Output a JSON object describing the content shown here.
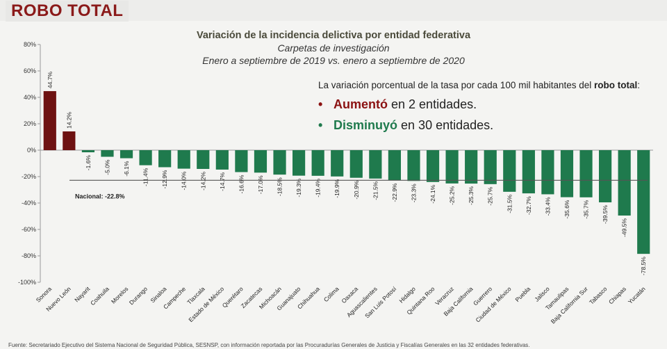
{
  "header": {
    "title": "ROBO TOTAL"
  },
  "chart_data": {
    "type": "bar",
    "title": "Variación de la incidencia delictiva por entidad federativa",
    "subtitle": "Carpetas de investigación",
    "period": "Enero a septiembre de 2019 vs. enero a septiembre de 2020",
    "ylim": [
      -100,
      80
    ],
    "yticks": [
      80,
      60,
      40,
      20,
      0,
      -20,
      -40,
      -60,
      -80,
      -100
    ],
    "ytick_suffix": "%",
    "grid": false,
    "categories": [
      "Sonora",
      "Nuevo León",
      "Nayarit",
      "Coahuila",
      "Morelos",
      "Durango",
      "Sinaloa",
      "Campeche",
      "Tlaxcala",
      "Estado de México",
      "Querétaro",
      "Zacatecas",
      "Michoacán",
      "Guanajuato",
      "Chihuahua",
      "Colima",
      "Oaxaca",
      "Aguascalientes",
      "San Luis Potosí",
      "Hidalgo",
      "Quintana Roo",
      "Veracruz",
      "Baja California",
      "Guerrero",
      "Ciudad de México",
      "Puebla",
      "Jalisco",
      "Tamaulipas",
      "Baja California Sur",
      "Tabasco",
      "Chiapas",
      "Yucatán"
    ],
    "values": [
      44.7,
      14.2,
      -1.6,
      -5.0,
      -6.1,
      -11.4,
      -12.9,
      -14.0,
      -14.2,
      -14.7,
      -16.6,
      -17.0,
      -18.5,
      -19.3,
      -19.4,
      -19.9,
      -20.9,
      -21.5,
      -22.9,
      -23.3,
      -24.1,
      -25.2,
      -25.3,
      -25.7,
      -31.5,
      -32.7,
      -33.4,
      -35.6,
      -35.7,
      -39.5,
      -49.5,
      -78.5
    ],
    "value_labels": [
      "44.7%",
      "14.2%",
      "-1.6%",
      "-5.0%",
      "-6.1%",
      "-11.4%",
      "-12.9%",
      "-14.0%",
      "-14.2%",
      "-14.7%",
      "-16.6%",
      "-17.0%",
      "-18.5%",
      "-19.3%",
      "-19.4%",
      "-19.9%",
      "-20.9%",
      "-21.5%",
      "-22.9%",
      "-23.3%",
      "-24.1%",
      "-25.2%",
      "-25.3%",
      "-25.7%",
      "-31.5%",
      "-32.7%",
      "-33.4%",
      "-35.6%",
      "-35.7%",
      "-39.5%",
      "-49.5%",
      "-78.5%"
    ],
    "reference_line": {
      "value": -22.8,
      "label": "Nacional: -22.8%"
    },
    "colors": {
      "increase": "#6e1212",
      "decrease": "#1f7a4d",
      "axis": "#999999",
      "reference": "#555555"
    }
  },
  "info": {
    "text_main": "La variación porcentual de la tasa por cada 100 mil habitantes del",
    "text_bold": "robo total",
    "text_end": ":",
    "increase_keyword": "Aumentó",
    "increase_text": "en 2 entidades.",
    "decrease_keyword": "Disminuyó",
    "decrease_text": "en 30 entidades."
  },
  "footer": {
    "text": "Fuente: Secretariado Ejecutivo del Sistema Nacional de Seguridad Pública, SESNSP, con información reportada por las Procuradurías Generales de Justicia y Fiscalías Generales en las 32 entidades federativas."
  }
}
